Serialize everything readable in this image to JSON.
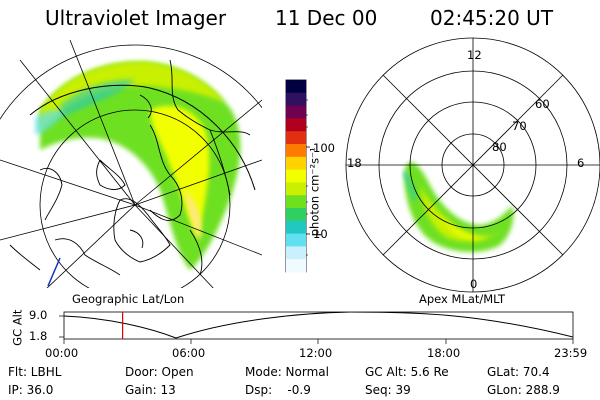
{
  "header": {
    "instrument": "Ultraviolet Imager",
    "date": "11 Dec 00",
    "time": "02:45:20 UT"
  },
  "colorbar": {
    "unit_label": "photon cm⁻²s⁻¹",
    "ticks": [
      "100",
      "10"
    ],
    "colors": [
      "#000040",
      "#301060",
      "#700050",
      "#b00020",
      "#e03010",
      "#ff7a00",
      "#ffd200",
      "#f2ff00",
      "#c8f000",
      "#6ee020",
      "#30d060",
      "#20c8c0",
      "#60e0f0",
      "#c8f0ff",
      "#f0fbff"
    ]
  },
  "left_map": {
    "caption": "Geographic Lat/Lon"
  },
  "right_map": {
    "caption": "Apex MLat/MLT",
    "mlt_labels": {
      "top": "12",
      "left": "18",
      "right": "6",
      "bottom": "0"
    },
    "lat_labels": [
      "60",
      "70",
      "80"
    ]
  },
  "altitude_plot": {
    "y_label": "GC Alt",
    "y_ticks": [
      "9.0",
      "1.8"
    ],
    "x_ticks": [
      "00:00",
      "06:00",
      "12:00",
      "18:00",
      "23:59"
    ],
    "marker_time_hours": 2.76,
    "marker_color": "#e00000"
  },
  "info": {
    "row1": {
      "filter": "Flt: LBHL",
      "door": "Door: Open",
      "mode": "Mode: Normal",
      "gc_alt": "GC Alt: 5.6 Re",
      "glat": "GLat: 70.4"
    },
    "row2": {
      "ip": "IP: 36.0",
      "gain": "Gain: 13",
      "dsp": "Dsp:    -0.9",
      "seq": "Seq: 39",
      "glon": "GLon: 288.9"
    }
  }
}
